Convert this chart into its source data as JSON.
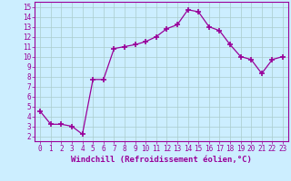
{
  "x": [
    0,
    1,
    2,
    3,
    4,
    5,
    6,
    7,
    8,
    9,
    10,
    11,
    12,
    13,
    14,
    15,
    16,
    17,
    18,
    19,
    20,
    21,
    22,
    23
  ],
  "y": [
    4.5,
    3.2,
    3.2,
    3.0,
    2.2,
    7.7,
    7.7,
    10.8,
    11.0,
    11.2,
    11.5,
    12.0,
    12.8,
    13.2,
    14.7,
    14.5,
    13.0,
    12.6,
    11.2,
    10.0,
    9.7,
    8.3,
    9.7,
    10.0
  ],
  "line_color": "#990099",
  "marker": "+",
  "marker_size": 5,
  "marker_lw": 1.2,
  "bg_color": "#cceeff",
  "grid_color": "#aacccc",
  "xlabel": "Windchill (Refroidissement éolien,°C)",
  "xlim": [
    -0.5,
    23.5
  ],
  "ylim": [
    1.5,
    15.5
  ],
  "yticks": [
    2,
    3,
    4,
    5,
    6,
    7,
    8,
    9,
    10,
    11,
    12,
    13,
    14,
    15
  ],
  "xticks": [
    0,
    1,
    2,
    3,
    4,
    5,
    6,
    7,
    8,
    9,
    10,
    11,
    12,
    13,
    14,
    15,
    16,
    17,
    18,
    19,
    20,
    21,
    22,
    23
  ],
  "tick_fontsize": 5.5,
  "xlabel_fontsize": 6.5
}
